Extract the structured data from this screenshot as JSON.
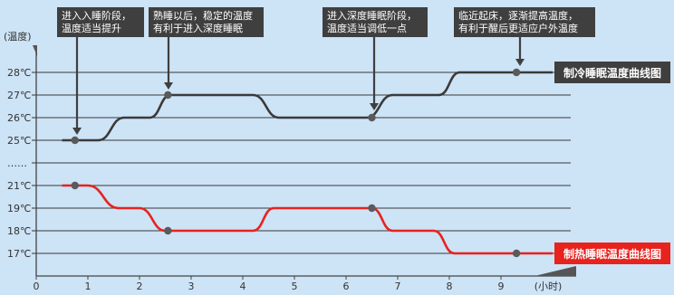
{
  "chart_data": {
    "type": "line",
    "x_axis": {
      "unit_label": "(小时)",
      "ticks": [
        "0",
        "1",
        "2",
        "3",
        "4",
        "5",
        "6",
        "7",
        "8",
        "9"
      ],
      "range": [
        0,
        10.3
      ]
    },
    "y_axis": {
      "unit_label": "(温度)",
      "ticks": [
        {
          "label": "28℃",
          "value": 28
        },
        {
          "label": "27℃",
          "value": 27
        },
        {
          "label": "26℃",
          "value": 26
        },
        {
          "label": "25℃",
          "value": 25
        },
        {
          "label": "……",
          "value": null
        },
        {
          "label": "21℃",
          "value": 21
        },
        {
          "label": "19℃",
          "value": 19
        },
        {
          "label": "18℃",
          "value": 18
        },
        {
          "label": "17℃",
          "value": 17
        }
      ]
    },
    "series": [
      {
        "name": "制冷睡眠温度曲线图",
        "color": "#3a3a3a",
        "legend_color": "#3f3f3f",
        "points": [
          [
            0.5,
            25
          ],
          [
            1.2,
            25
          ],
          [
            1.7,
            26
          ],
          [
            2.2,
            26
          ],
          [
            2.6,
            27
          ],
          [
            4.2,
            27
          ],
          [
            4.7,
            26
          ],
          [
            6.4,
            26
          ],
          [
            6.9,
            27
          ],
          [
            7.8,
            27
          ],
          [
            8.2,
            28
          ],
          [
            10.0,
            28
          ]
        ],
        "markers": [
          [
            0.75,
            25
          ],
          [
            2.55,
            27
          ],
          [
            6.5,
            26
          ],
          [
            9.3,
            28
          ]
        ]
      },
      {
        "name": "制热睡眠温度曲线图",
        "color": "#e8221d",
        "legend_color": "#e8221d",
        "points": [
          [
            0.5,
            21
          ],
          [
            1.0,
            21
          ],
          [
            1.6,
            19
          ],
          [
            2.0,
            19
          ],
          [
            2.5,
            18
          ],
          [
            4.2,
            18
          ],
          [
            4.6,
            19
          ],
          [
            6.5,
            19
          ],
          [
            6.9,
            18
          ],
          [
            7.7,
            18
          ],
          [
            8.1,
            17
          ],
          [
            10.0,
            17
          ]
        ],
        "markers": [
          [
            0.75,
            21
          ],
          [
            2.55,
            18
          ],
          [
            6.5,
            19
          ],
          [
            9.3,
            17
          ]
        ]
      }
    ],
    "annotations": [
      {
        "lines": [
          "进入入睡阶段，",
          "温度适当提升"
        ]
      },
      {
        "lines": [
          "熟睡以后，稳定的温度",
          "有利于进入深度睡眠"
        ]
      },
      {
        "lines": [
          "进入深度睡眠阶段，",
          "温度适当调低一点"
        ]
      },
      {
        "lines": [
          "临近起床，逐渐提高温度，",
          "有利于醒后更适应户外温度"
        ]
      }
    ]
  }
}
